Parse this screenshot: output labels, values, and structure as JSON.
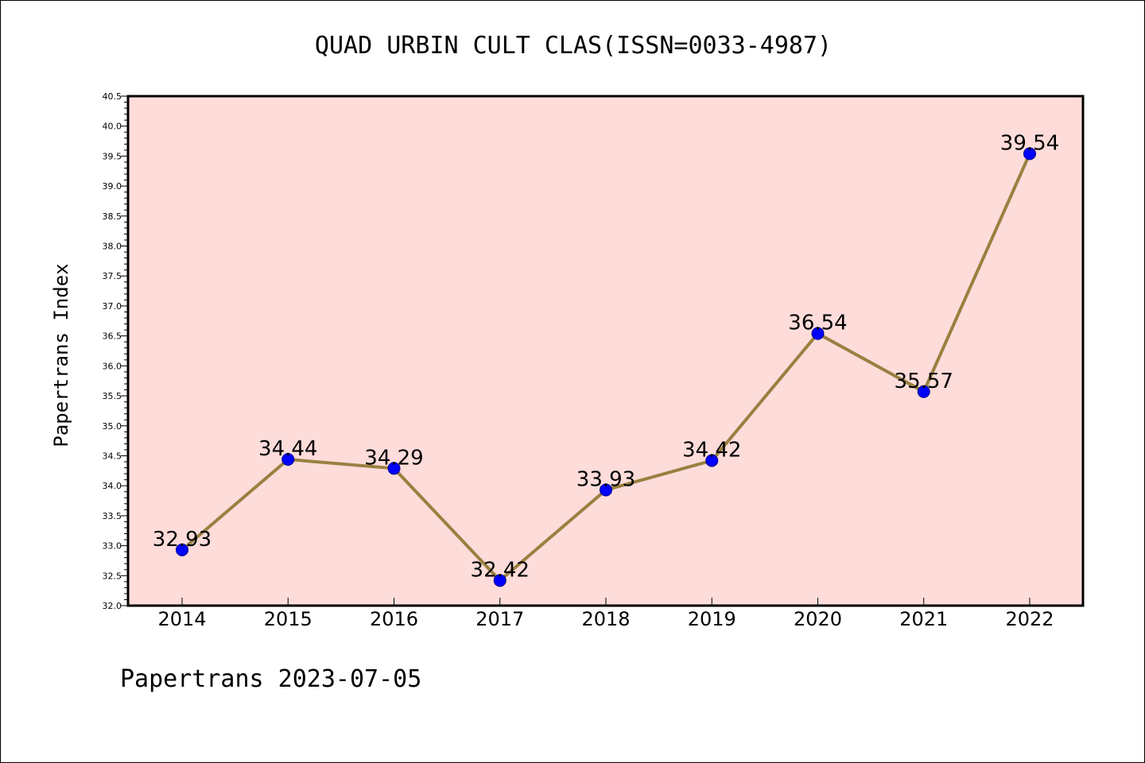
{
  "chart_data": {
    "type": "line",
    "title": "QUAD URBIN CULT CLAS(ISSN=0033-4987)",
    "ylabel": "Papertrans Index",
    "xlabel": "",
    "footer": "Papertrans 2023-07-05",
    "categories": [
      "2014",
      "2015",
      "2016",
      "2017",
      "2018",
      "2019",
      "2020",
      "2021",
      "2022"
    ],
    "series": [
      {
        "values": [
          32.93,
          34.44,
          34.29,
          32.42,
          33.93,
          34.42,
          36.54,
          35.57,
          39.54
        ],
        "labels": [
          "32.93",
          "34.44",
          "34.29",
          "32.42",
          "33.93",
          "34.42",
          "36.54",
          "35.57",
          "39.54"
        ]
      }
    ],
    "ylim": [
      32.0,
      40.5
    ],
    "yticks": [
      "32.0",
      "32.5",
      "33.0",
      "33.5",
      "34.0",
      "34.5",
      "35.0",
      "35.5",
      "36.0",
      "36.5",
      "37.0",
      "37.5",
      "38.0",
      "38.5",
      "39.0",
      "39.5",
      "40.0",
      "40.5"
    ],
    "grid": false,
    "colors": {
      "plot_background": "#fddcda",
      "line": "#9a8040",
      "marker": "#0000ff",
      "marker_edge": "#00008b"
    }
  }
}
